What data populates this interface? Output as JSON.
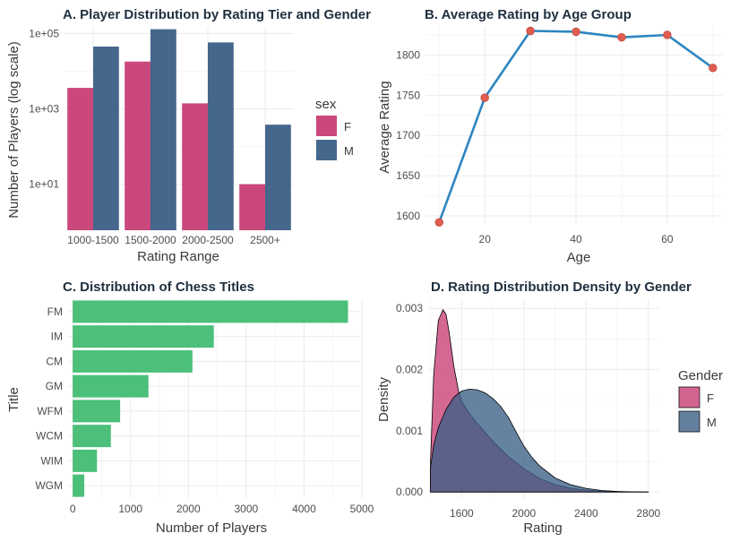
{
  "colors": {
    "female": "#c73e74",
    "male": "#3b5f86",
    "titles_bar": "#4cc07a",
    "line": "#2e86c1",
    "points": "#e05d4f"
  },
  "chart_data": [
    {
      "id": "A",
      "type": "bar",
      "title": "A. Player Distribution by Rating Tier and Gender",
      "xlabel": "Rating Range",
      "ylabel": "Number of Players (log scale)",
      "yscale": "log10",
      "ylim": [
        0.6,
        150000
      ],
      "yticks": [
        {
          "value": 10,
          "label": "1e+01"
        },
        {
          "value": 1000,
          "label": "1e+03"
        },
        {
          "value": 100000,
          "label": "1e+05"
        }
      ],
      "categories": [
        "1000-1500",
        "1500-2000",
        "2000-2500",
        "2500+"
      ],
      "legend_title": "sex",
      "legend_position": "right",
      "series": [
        {
          "name": "F",
          "values": [
            3600,
            18000,
            1400,
            10
          ]
        },
        {
          "name": "M",
          "values": [
            45000,
            130000,
            58000,
            380
          ]
        }
      ]
    },
    {
      "id": "B",
      "type": "line",
      "title": "B. Average Rating by Age Group",
      "xlabel": "Age",
      "ylabel": "Average Rating",
      "xlim": [
        7,
        72
      ],
      "ylim": [
        1590,
        1835
      ],
      "xticks": [
        20,
        40,
        60
      ],
      "yticks": [
        1600,
        1650,
        1700,
        1750,
        1800
      ],
      "x": [
        10,
        20,
        30,
        40,
        50,
        60,
        70
      ],
      "y": [
        1592,
        1747,
        1830,
        1829,
        1822,
        1825,
        1784
      ]
    },
    {
      "id": "C",
      "type": "bar",
      "orientation": "horizontal",
      "title": "C. Distribution of Chess Titles",
      "xlabel": "Number of Players",
      "ylabel": "Title",
      "xlim": [
        -80,
        5000
      ],
      "xticks": [
        0,
        1000,
        2000,
        3000,
        4000,
        5000
      ],
      "categories": [
        "FM",
        "IM",
        "CM",
        "GM",
        "WFM",
        "WCM",
        "WIM",
        "WGM"
      ],
      "values": [
        4760,
        2440,
        2070,
        1310,
        820,
        660,
        420,
        200
      ]
    },
    {
      "id": "D",
      "type": "area",
      "title": "D. Rating Distribution Density by Gender",
      "xlabel": "Rating",
      "ylabel": "Density",
      "xlim": [
        1385,
        2870
      ],
      "ylim": [
        -0.0001,
        0.00315
      ],
      "xticks": [
        1600,
        2000,
        2400,
        2800
      ],
      "yticks": [
        {
          "value": 0.0,
          "label": "0.000"
        },
        {
          "value": 0.001,
          "label": "0.001"
        },
        {
          "value": 0.002,
          "label": "0.002"
        },
        {
          "value": 0.003,
          "label": "0.003"
        }
      ],
      "legend_title": "Gender",
      "legend_position": "right",
      "series": [
        {
          "name": "F",
          "x": [
            1400,
            1420,
            1450,
            1480,
            1500,
            1520,
            1550,
            1580,
            1600,
            1650,
            1700,
            1800,
            1900,
            2000,
            2100,
            2200,
            2300,
            2400,
            2500,
            2600,
            2700,
            2800
          ],
          "y": [
            0.0005,
            0.0019,
            0.0028,
            0.00298,
            0.0029,
            0.0026,
            0.00205,
            0.00165,
            0.00148,
            0.00128,
            0.00112,
            0.00083,
            0.00058,
            0.00038,
            0.00022,
            0.00012,
            6e-05,
            3e-05,
            1.5e-05,
            6e-06,
            2e-06,
            0.0
          ]
        },
        {
          "name": "M",
          "x": [
            1400,
            1420,
            1450,
            1500,
            1550,
            1600,
            1650,
            1700,
            1750,
            1800,
            1850,
            1900,
            1950,
            2000,
            2050,
            2100,
            2200,
            2300,
            2400,
            2500,
            2600,
            2700,
            2800
          ],
          "y": [
            0.0004,
            0.00075,
            0.00105,
            0.00135,
            0.00155,
            0.00165,
            0.00168,
            0.00167,
            0.00162,
            0.00153,
            0.0014,
            0.00122,
            0.00098,
            0.00075,
            0.00057,
            0.00043,
            0.00023,
            0.00012,
            6e-05,
            2.5e-05,
            1e-05,
            3e-06,
            0.0
          ]
        }
      ]
    }
  ]
}
